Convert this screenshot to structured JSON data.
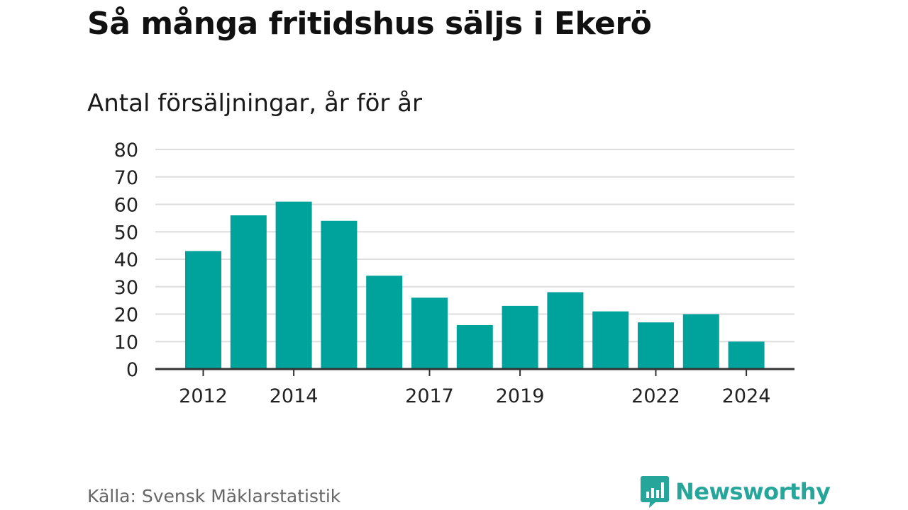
{
  "header": {
    "title": "Så många fritidshus säljs i Ekerö",
    "subtitle": "Antal försäljningar, år för år"
  },
  "footer": {
    "source": "Källa: Svensk Mäklarstatistik",
    "brand": "Newsworthy"
  },
  "colors": {
    "bar": "#00a39b",
    "grid": "#dddddd",
    "axis": "#333333",
    "brand": "#26a69a"
  },
  "chart_data": {
    "type": "bar",
    "title": "Så många fritidshus säljs i Ekerö",
    "subtitle": "Antal försäljningar, år för år",
    "categories": [
      "2012",
      "2013",
      "2014",
      "2015",
      "2016",
      "2017",
      "2018",
      "2019",
      "2020",
      "2021",
      "2022",
      "2023",
      "2024"
    ],
    "values": [
      43,
      56,
      61,
      54,
      34,
      26,
      16,
      23,
      28,
      21,
      17,
      20,
      10
    ],
    "x_tick_labels": [
      "2012",
      "2014",
      "2017",
      "2019",
      "2022",
      "2024"
    ],
    "y_ticks": [
      0,
      10,
      20,
      30,
      40,
      50,
      60,
      70,
      80
    ],
    "ylim": [
      0,
      80
    ],
    "grid": true,
    "legend": "none"
  }
}
